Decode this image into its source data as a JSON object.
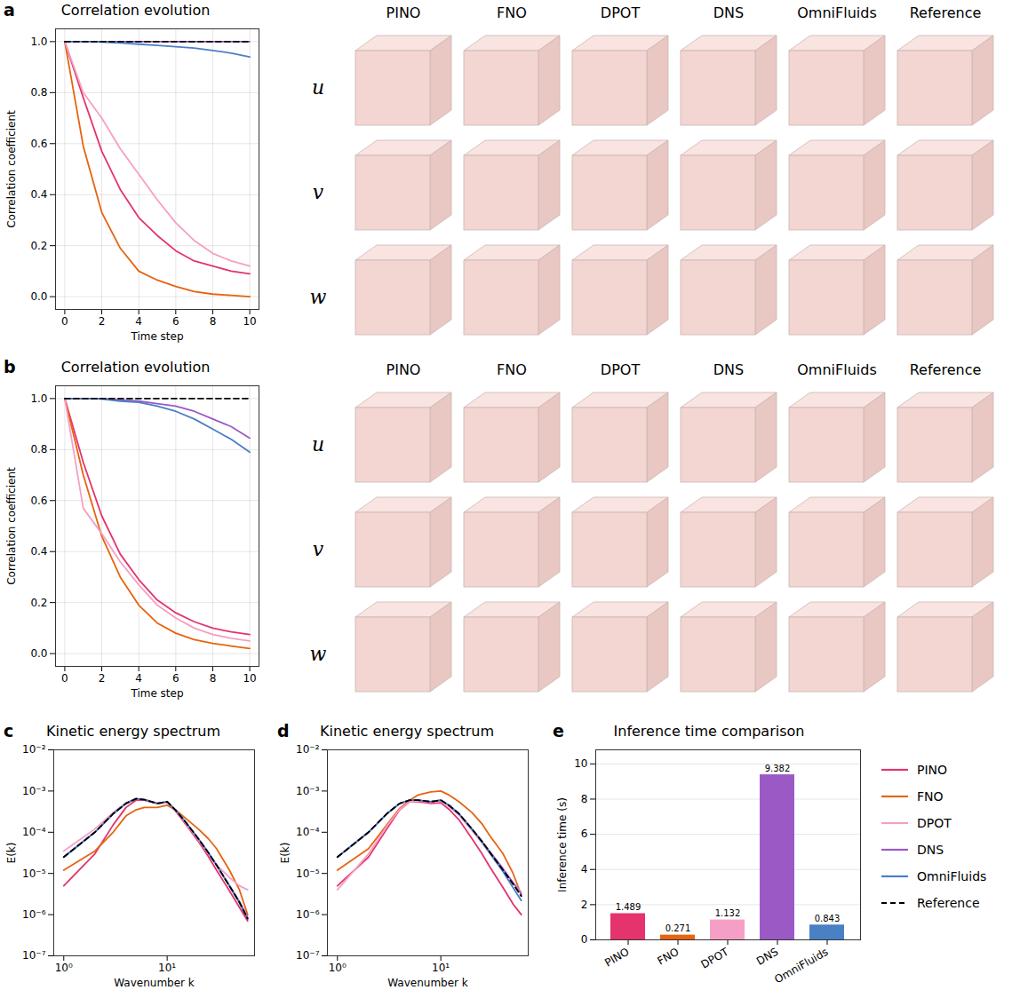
{
  "chart_data": [
    {
      "type": "line",
      "panel": "a",
      "title": "Correlation evolution",
      "x_label": "Time step",
      "y_label": "Correlation coefficient",
      "x": [
        0,
        1,
        2,
        3,
        4,
        5,
        6,
        7,
        8,
        9,
        10
      ],
      "xlim": [
        -0.5,
        10.5
      ],
      "xticks": [
        0,
        2,
        4,
        6,
        8,
        10
      ],
      "ylim": [
        -0.05,
        1.05
      ],
      "yticks": [
        {
          "value": 0,
          "label": "0.0"
        },
        {
          "value": 0.2,
          "label": "0.2"
        },
        {
          "value": 0.4,
          "label": "0.4"
        },
        {
          "value": 0.6,
          "label": "0.6"
        },
        {
          "value": 0.8,
          "label": "0.8"
        },
        {
          "value": 1,
          "label": "1.0"
        }
      ],
      "grid": true,
      "series": [
        {
          "name": "PINO",
          "color": "#e4336d",
          "line_style": "solid",
          "values": [
            1.0,
            0.78,
            0.57,
            0.42,
            0.31,
            0.24,
            0.18,
            0.14,
            0.12,
            0.1,
            0.09
          ]
        },
        {
          "name": "FNO",
          "color": "#e6640f",
          "line_style": "solid",
          "values": [
            1.0,
            0.59,
            0.33,
            0.19,
            0.1,
            0.065,
            0.04,
            0.02,
            0.01,
            0.005,
            0.0
          ]
        },
        {
          "name": "DPOT",
          "color": "#f59fc6",
          "line_style": "solid",
          "values": [
            1.0,
            0.8,
            0.7,
            0.58,
            0.48,
            0.38,
            0.29,
            0.22,
            0.17,
            0.14,
            0.12
          ]
        },
        {
          "name": "DNS",
          "color": "#9b59c6",
          "line_style": "solid",
          "values": [
            1.0,
            1.0,
            1.0,
            1.0,
            1.0,
            1.0,
            1.0,
            1.0,
            1.0,
            1.0,
            1.0
          ]
        },
        {
          "name": "OmniFluids",
          "color": "#4a80c4",
          "line_style": "solid",
          "values": [
            1.0,
            1.0,
            0.998,
            0.995,
            0.99,
            0.985,
            0.98,
            0.975,
            0.965,
            0.955,
            0.94
          ]
        },
        {
          "name": "Reference",
          "color": "#000000",
          "line_style": "dashed",
          "values": [
            1.0,
            1.0,
            1.0,
            1.0,
            1.0,
            1.0,
            1.0,
            1.0,
            1.0,
            1.0,
            1.0
          ]
        }
      ]
    },
    {
      "type": "image_grid",
      "panel": "a",
      "columns": [
        "PINO",
        "FNO",
        "DPOT",
        "DNS",
        "OmniFluids",
        "Reference"
      ],
      "rows": [
        "u",
        "v",
        "w"
      ]
    },
    {
      "type": "line",
      "panel": "b",
      "title": "Correlation evolution",
      "x_label": "Time step",
      "y_label": "Correlation coefficient",
      "x": [
        0,
        1,
        2,
        3,
        4,
        5,
        6,
        7,
        8,
        9,
        10
      ],
      "xlim": [
        -0.5,
        10.5
      ],
      "xticks": [
        0,
        2,
        4,
        6,
        8,
        10
      ],
      "ylim": [
        -0.05,
        1.05
      ],
      "yticks": [
        {
          "value": 0,
          "label": "0.0"
        },
        {
          "value": 0.2,
          "label": "0.2"
        },
        {
          "value": 0.4,
          "label": "0.4"
        },
        {
          "value": 0.6,
          "label": "0.6"
        },
        {
          "value": 0.8,
          "label": "0.8"
        },
        {
          "value": 1,
          "label": "1.0"
        }
      ],
      "grid": true,
      "series": [
        {
          "name": "PINO",
          "color": "#e4336d",
          "line_style": "solid",
          "values": [
            1.0,
            0.75,
            0.54,
            0.39,
            0.29,
            0.21,
            0.16,
            0.125,
            0.1,
            0.085,
            0.075
          ]
        },
        {
          "name": "FNO",
          "color": "#e6640f",
          "line_style": "solid",
          "values": [
            1.0,
            0.7,
            0.46,
            0.3,
            0.19,
            0.12,
            0.08,
            0.055,
            0.04,
            0.03,
            0.02
          ]
        },
        {
          "name": "DPOT",
          "color": "#f59fc6",
          "line_style": "solid",
          "values": [
            1.0,
            0.57,
            0.47,
            0.36,
            0.27,
            0.19,
            0.14,
            0.1,
            0.075,
            0.06,
            0.05
          ]
        },
        {
          "name": "DNS",
          "color": "#9b59c6",
          "line_style": "solid",
          "values": [
            1.0,
            1.0,
            1.0,
            0.995,
            0.99,
            0.98,
            0.97,
            0.95,
            0.92,
            0.89,
            0.845
          ]
        },
        {
          "name": "OmniFluids",
          "color": "#4a80c4",
          "line_style": "solid",
          "values": [
            1.0,
            1.0,
            0.998,
            0.99,
            0.985,
            0.97,
            0.95,
            0.92,
            0.88,
            0.84,
            0.79
          ]
        },
        {
          "name": "Reference",
          "color": "#000000",
          "line_style": "dashed",
          "values": [
            1.0,
            1.0,
            1.0,
            1.0,
            1.0,
            1.0,
            1.0,
            1.0,
            1.0,
            1.0,
            1.0
          ]
        }
      ]
    },
    {
      "type": "image_grid",
      "panel": "b",
      "columns": [
        "PINO",
        "FNO",
        "DPOT",
        "DNS",
        "OmniFluids",
        "Reference"
      ],
      "rows": [
        "u",
        "v",
        "w"
      ]
    },
    {
      "type": "line",
      "panel": "c",
      "title": "Kinetic energy spectrum",
      "x_label": "Wavenumber k",
      "y_label": "E(k)",
      "log": true,
      "grid": false,
      "x": [
        1,
        2,
        3,
        4,
        5,
        6,
        8,
        10,
        12,
        15,
        20,
        25,
        30,
        40,
        50,
        60
      ],
      "xlim": [
        0.8,
        70
      ],
      "xticks": [
        {
          "value": 1,
          "label": "10⁰"
        },
        {
          "value": 10,
          "label": "10¹"
        }
      ],
      "ylim": [
        1e-07,
        0.01
      ],
      "yticks": [
        {
          "value": 1e-07,
          "label": "10⁻⁷"
        },
        {
          "value": 1e-06,
          "label": "10⁻⁶"
        },
        {
          "value": 1e-05,
          "label": "10⁻⁵"
        },
        {
          "value": 0.0001,
          "label": "10⁻⁴"
        },
        {
          "value": 0.001,
          "label": "10⁻³"
        },
        {
          "value": 0.01,
          "label": "10⁻²"
        }
      ],
      "series": [
        {
          "name": "PINO",
          "color": "#e4336d",
          "line_style": "solid",
          "values": [
            5e-06,
            3e-05,
            0.00015,
            0.0004,
            0.0006,
            0.0006,
            0.0005,
            0.00053,
            0.00033,
            0.00016,
            6e-05,
            2.6e-05,
            1.2e-05,
            3.8e-06,
            1.5e-06,
            7e-07
          ]
        },
        {
          "name": "FNO",
          "color": "#e6640f",
          "line_style": "solid",
          "values": [
            1.2e-05,
            3.5e-05,
            0.0001,
            0.00025,
            0.00035,
            0.0004,
            0.0004,
            0.00045,
            0.00035,
            0.00022,
            0.00012,
            7e-05,
            4e-05,
            1.2e-05,
            4e-06,
            1e-06
          ]
        },
        {
          "name": "DPOT",
          "color": "#f59fc6",
          "line_style": "solid",
          "values": [
            3.5e-05,
            0.00012,
            0.0003,
            0.00052,
            0.00066,
            0.00063,
            0.00051,
            0.00054,
            0.00034,
            0.00017,
            6.5e-05,
            3e-05,
            1.6e-05,
            8e-06,
            5e-06,
            4e-06
          ]
        },
        {
          "name": "DNS",
          "color": "#9b59c6",
          "line_style": "solid",
          "values": [
            2.5e-05,
            0.0001,
            0.00028,
            0.0005,
            0.00065,
            0.00062,
            0.0005,
            0.00055,
            0.00035,
            0.00018,
            7e-05,
            3.2e-05,
            1.6e-05,
            5.1e-06,
            2.1e-06,
            8.5e-07
          ]
        },
        {
          "name": "OmniFluids",
          "color": "#4a80c4",
          "line_style": "solid",
          "values": [
            2.5e-05,
            0.0001,
            0.00028,
            0.0005,
            0.00065,
            0.00062,
            0.0005,
            0.00055,
            0.00035,
            0.00018,
            7e-05,
            3.2e-05,
            1.6e-05,
            4.9e-06,
            1.9e-06,
            8e-07
          ]
        },
        {
          "name": "Reference",
          "color": "#000000",
          "line_style": "dashed",
          "values": [
            2.5e-05,
            0.0001,
            0.00028,
            0.0005,
            0.00065,
            0.00062,
            0.0005,
            0.00055,
            0.00035,
            0.00018,
            7e-05,
            3.2e-05,
            1.6e-05,
            5e-06,
            2e-06,
            8e-07
          ]
        }
      ]
    },
    {
      "type": "line",
      "panel": "d",
      "title": "Kinetic energy spectrum",
      "x_label": "Wavenumber k",
      "y_label": "E(k)",
      "log": true,
      "grid": false,
      "x": [
        1,
        2,
        3,
        4,
        5,
        6,
        8,
        10,
        12,
        15,
        20,
        25,
        30,
        40,
        50,
        60
      ],
      "xlim": [
        0.8,
        70
      ],
      "xticks": [
        {
          "value": 1,
          "label": "10⁰"
        },
        {
          "value": 10,
          "label": "10¹"
        }
      ],
      "ylim": [
        1e-07,
        0.01
      ],
      "yticks": [
        {
          "value": 1e-07,
          "label": "10⁻⁷"
        },
        {
          "value": 1e-06,
          "label": "10⁻⁶"
        },
        {
          "value": 1e-05,
          "label": "10⁻⁵"
        },
        {
          "value": 0.0001,
          "label": "10⁻⁴"
        },
        {
          "value": 0.001,
          "label": "10⁻³"
        },
        {
          "value": 0.01,
          "label": "10⁻²"
        }
      ],
      "series": [
        {
          "name": "PINO",
          "color": "#e4336d",
          "line_style": "solid",
          "values": [
            5e-06,
            2.5e-05,
            0.00012,
            0.00035,
            0.00055,
            0.00055,
            0.0005,
            0.00052,
            0.00036,
            0.0002,
            7e-05,
            3e-05,
            1.4e-05,
            4.5e-06,
            1.8e-06,
            1e-06
          ]
        },
        {
          "name": "FNO",
          "color": "#e6640f",
          "line_style": "solid",
          "values": [
            1.2e-05,
            4e-05,
            0.00015,
            0.00038,
            0.0006,
            0.0008,
            0.00095,
            0.001,
            0.0008,
            0.00055,
            0.0003,
            0.00016,
            8e-05,
            3e-05,
            1e-05,
            3e-06
          ]
        },
        {
          "name": "DPOT",
          "color": "#f59fc6",
          "line_style": "solid",
          "values": [
            4e-06,
            3e-05,
            0.00014,
            0.00036,
            0.00055,
            0.00058,
            0.00053,
            0.00058,
            0.00042,
            0.00026,
            0.00011,
            5.5e-05,
            3e-05,
            1.2e-05,
            6e-06,
            3.5e-06
          ]
        },
        {
          "name": "DNS",
          "color": "#9b59c6",
          "line_style": "solid",
          "values": [
            2.5e-05,
            0.0001,
            0.00028,
            0.0005,
            0.0006,
            0.0006,
            0.00055,
            0.0006,
            0.00045,
            0.00028,
            0.00012,
            6e-05,
            3.3e-05,
            1.3e-05,
            6e-06,
            3.2e-06
          ]
        },
        {
          "name": "OmniFluids",
          "color": "#4a80c4",
          "line_style": "solid",
          "values": [
            2.5e-05,
            0.0001,
            0.00028,
            0.0005,
            0.0006,
            0.0006,
            0.00055,
            0.0006,
            0.00045,
            0.00028,
            0.00012,
            5.8e-05,
            3e-05,
            1.1e-05,
            4.5e-06,
            2.2e-06
          ]
        },
        {
          "name": "Reference",
          "color": "#000000",
          "line_style": "dashed",
          "values": [
            2.5e-05,
            0.0001,
            0.00028,
            0.0005,
            0.0006,
            0.0006,
            0.00055,
            0.0006,
            0.00045,
            0.00028,
            0.00012,
            6e-05,
            3.2e-05,
            1.2e-05,
            5.5e-06,
            2.8e-06
          ]
        }
      ]
    },
    {
      "type": "bar",
      "panel": "e",
      "title": "Inference time comparison",
      "y_label": "Inference time (s)",
      "categories": [
        "PINO",
        "FNO",
        "DPOT",
        "DNS",
        "OmniFluids"
      ],
      "values": [
        1.489,
        0.271,
        1.132,
        9.382,
        0.843
      ],
      "colors": [
        "#e4336d",
        "#e6640f",
        "#f59fc6",
        "#9b59c6",
        "#4a80c4"
      ],
      "ylim": [
        0,
        10.8
      ],
      "yticks": [
        0,
        2,
        4,
        6,
        8,
        10
      ],
      "grid": true,
      "data_labels": true,
      "legend": "right"
    }
  ]
}
